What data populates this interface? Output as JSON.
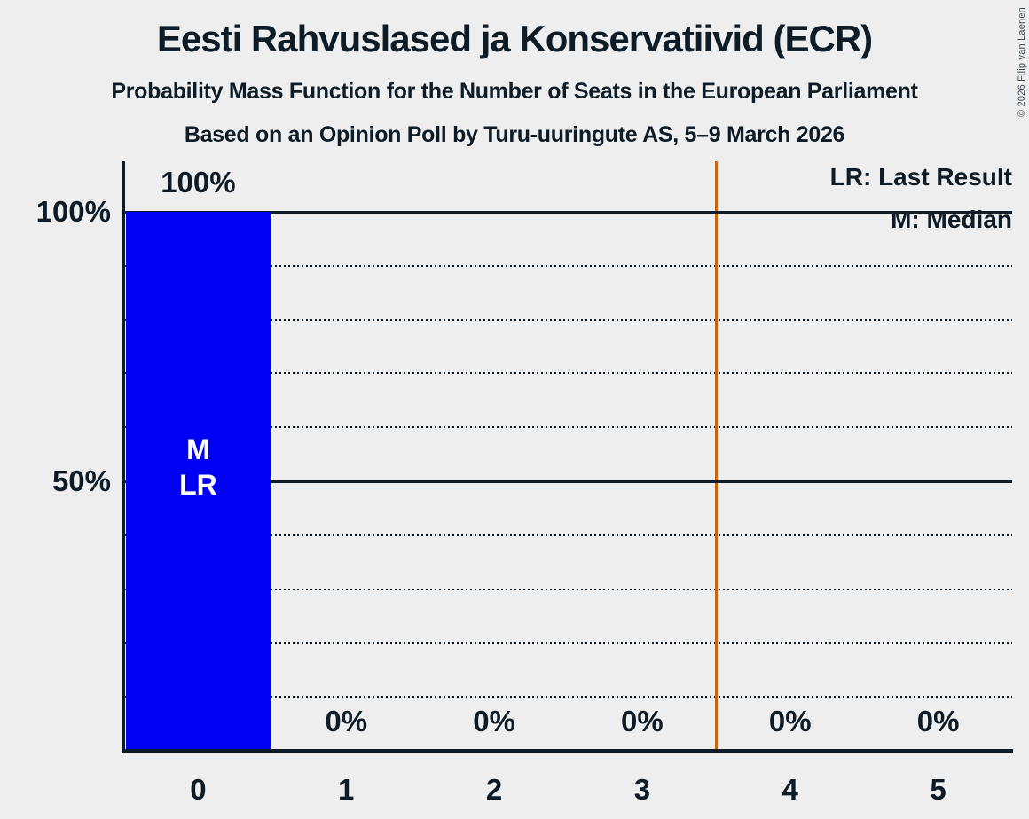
{
  "header": {
    "title": "Eesti Rahvuslased ja Konservatiivid (ECR)",
    "subtitle": "Probability Mass Function for the Number of Seats in the European Parliament",
    "poll_line": "Based on an Opinion Poll by Turu-uuringute AS, 5–9 March 2026"
  },
  "copyright": "© 2026 Filip van Laenen",
  "legend": {
    "last_result": "LR: Last Result",
    "median": "M: Median"
  },
  "y_axis": {
    "top": "100%",
    "middle": "50%"
  },
  "chart_data": {
    "type": "bar",
    "title": "Eesti Rahvuslased ja Konservatiivid (ECR)",
    "categories": [
      "0",
      "1",
      "2",
      "3",
      "4",
      "5"
    ],
    "values": [
      100,
      0,
      0,
      0,
      0,
      0
    ],
    "value_labels": [
      "100%",
      "0%",
      "0%",
      "0%",
      "0%",
      "0%"
    ],
    "ylim": [
      0,
      100
    ],
    "y_solid_gridlines_pct": [
      50,
      100
    ],
    "y_dotted_gridlines_pct": [
      10,
      20,
      30,
      40,
      60,
      70,
      80,
      90
    ],
    "vertical_line_seats": 3.5,
    "median_seats": 0,
    "last_result_seats": 0,
    "bar_inside_labels": [
      {
        "category_index": 0,
        "labels": [
          "M",
          "LR"
        ]
      }
    ],
    "legend_position": "top-right",
    "grid": true,
    "colors": {
      "bar": "#0000f2",
      "vertical_line": "#cc640d",
      "ink": "#0e1c28",
      "background": "#eeeeee",
      "bar_label": "#ffffff"
    }
  }
}
